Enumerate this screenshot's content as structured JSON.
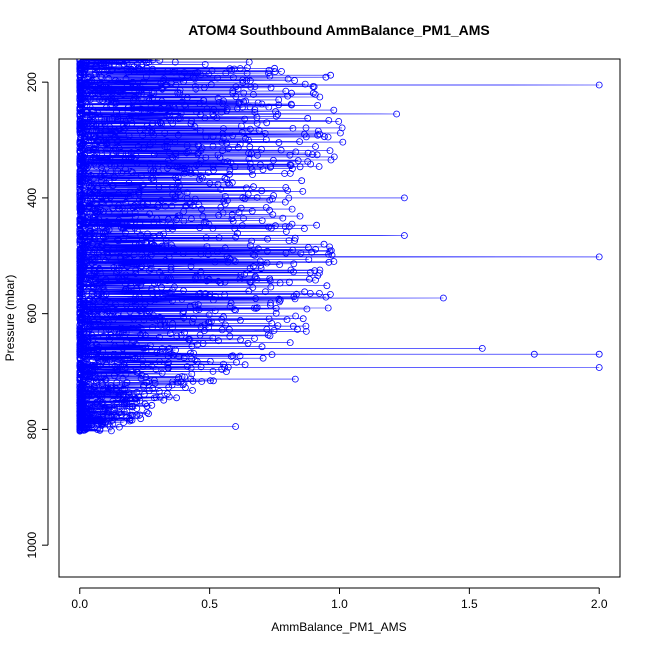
{
  "chart_data": {
    "type": "scatter",
    "title": "ATOM4 Southbound AmmBalance_PM1_AMS",
    "xlabel": "AmmBalance_PM1_AMS",
    "ylabel": "Pressure (mbar)",
    "xlim": [
      -0.08,
      2.08
    ],
    "ylim": [
      1055,
      160
    ],
    "y_axis_reversed": true,
    "x_ticks": [
      0.0,
      0.5,
      1.0,
      1.5,
      2.0
    ],
    "x_tick_labels": [
      "0.0",
      "0.5",
      "1.0",
      "1.5",
      "2.0"
    ],
    "y_ticks": [
      200,
      400,
      600,
      800,
      1000
    ],
    "y_tick_labels": [
      "200",
      "400",
      "600",
      "800",
      "1000"
    ],
    "series": [
      {
        "color": "#0000ff",
        "marker": "open-circle",
        "connected": true,
        "notable_points": [
          {
            "x": 2.0,
            "y": 205
          },
          {
            "x": 1.22,
            "y": 255
          },
          {
            "x": 1.25,
            "y": 400
          },
          {
            "x": 1.25,
            "y": 465
          },
          {
            "x": 2.0,
            "y": 502
          },
          {
            "x": 1.4,
            "y": 573
          },
          {
            "x": 1.55,
            "y": 660
          },
          {
            "x": 1.75,
            "y": 670
          },
          {
            "x": 2.0,
            "y": 670
          },
          {
            "x": 2.0,
            "y": 693
          },
          {
            "x": 0.83,
            "y": 713
          },
          {
            "x": 0.6,
            "y": 795
          }
        ],
        "density_profile": [
          {
            "p": 160,
            "xmax": 1.0
          },
          {
            "p": 240,
            "xmax": 0.98
          },
          {
            "p": 300,
            "xmax": 1.05
          },
          {
            "p": 360,
            "xmax": 0.93
          },
          {
            "p": 420,
            "xmax": 0.88
          },
          {
            "p": 480,
            "xmax": 0.97
          },
          {
            "p": 540,
            "xmax": 1.0
          },
          {
            "p": 600,
            "xmax": 0.95
          },
          {
            "p": 660,
            "xmax": 0.8
          },
          {
            "p": 700,
            "xmax": 0.6
          },
          {
            "p": 740,
            "xmax": 0.4
          },
          {
            "p": 780,
            "xmax": 0.25
          },
          {
            "p": 800,
            "xmax": 0.15
          }
        ],
        "pressure_range": [
          160,
          803
        ]
      }
    ]
  }
}
